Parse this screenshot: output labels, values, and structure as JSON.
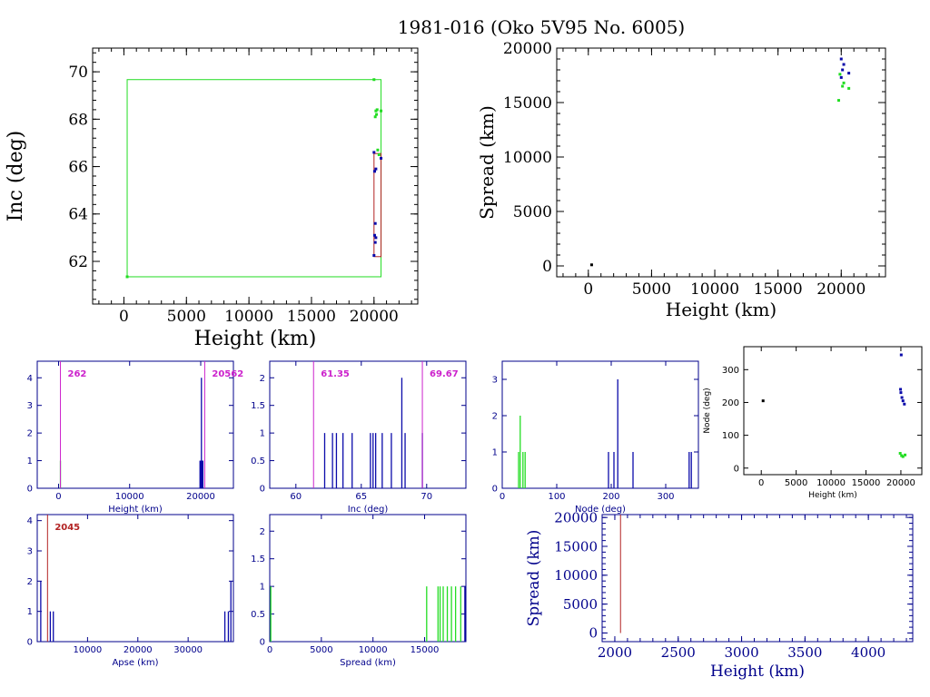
{
  "title": "1981-016 (Oko 5V95 No. 6005)",
  "colors": {
    "green": "#22dd22",
    "blue": "#0a0aaa",
    "navy": "#000080",
    "red": "#b22222",
    "magenta": "#cc22cc",
    "black": "#000000"
  },
  "chart_data": [
    {
      "id": "inc_height",
      "type": "scatter",
      "xlabel": "Height (km)",
      "ylabel": "Inc (deg)",
      "xlim": [
        -2500,
        23500
      ],
      "ylim": [
        60.2,
        71
      ],
      "xticks": [
        0,
        5000,
        10000,
        15000,
        20000
      ],
      "yticks": [
        62,
        64,
        66,
        68,
        70
      ],
      "boxes": [
        {
          "color": "green",
          "x": [
            262,
            20562
          ],
          "y": [
            61.35,
            69.67
          ]
        },
        {
          "color": "red",
          "x": [
            20000,
            20562
          ],
          "y": [
            62.2,
            66.55
          ]
        }
      ],
      "series": [
        {
          "color": "green",
          "points": [
            [
              262,
              61.35
            ],
            [
              20000,
              69.67
            ],
            [
              20150,
              68.35
            ],
            [
              20250,
              68.4
            ],
            [
              20100,
              68.1
            ],
            [
              20200,
              68.2
            ],
            [
              20562,
              68.35
            ],
            [
              20300,
              66.7
            ],
            [
              20400,
              66.5
            ]
          ]
        },
        {
          "color": "blue",
          "points": [
            [
              20050,
              65.8
            ],
            [
              20150,
              65.9
            ],
            [
              20000,
              66.6
            ],
            [
              20100,
              63.6
            ],
            [
              20050,
              63.1
            ],
            [
              20150,
              63.0
            ],
            [
              20100,
              62.8
            ],
            [
              20562,
              66.35
            ],
            [
              20000,
              62.25
            ]
          ]
        }
      ]
    },
    {
      "id": "spread_height",
      "type": "scatter",
      "xlabel": "Height (km)",
      "ylabel": "Spread (km)",
      "xlim": [
        -2500,
        23500
      ],
      "ylim": [
        -1000,
        20000
      ],
      "xticks": [
        0,
        5000,
        10000,
        15000,
        20000
      ],
      "yticks": [
        0,
        5000,
        10000,
        15000,
        20000
      ],
      "series": [
        {
          "color": "black",
          "points": [
            [
              262,
              100
            ]
          ]
        },
        {
          "color": "green",
          "points": [
            [
              19800,
              15200
            ],
            [
              20100,
              16500
            ],
            [
              20200,
              16800
            ],
            [
              20600,
              16300
            ],
            [
              19900,
              17600
            ]
          ]
        },
        {
          "color": "blue",
          "points": [
            [
              20000,
              19000
            ],
            [
              20100,
              18000
            ],
            [
              20000,
              17300
            ],
            [
              20600,
              17700
            ],
            [
              20200,
              18500
            ]
          ]
        }
      ]
    },
    {
      "id": "hist_height",
      "type": "bar",
      "xlabel": "Height (km)",
      "ylim": [
        0,
        4.6
      ],
      "xlim": [
        -3000,
        24600
      ],
      "xticks": [
        0,
        10000,
        20000
      ],
      "yticks": [
        0,
        1,
        2,
        3,
        4
      ],
      "markers": [
        {
          "x": 262,
          "label": "262",
          "color": "magenta"
        },
        {
          "x": 20562,
          "label": "20562",
          "color": "magenta"
        }
      ],
      "bars": [
        {
          "color": "green",
          "x": 262,
          "h": 1
        },
        {
          "color": "blue",
          "x": 19900,
          "h": 1
        },
        {
          "color": "blue",
          "x": 20000,
          "h": 1
        },
        {
          "color": "blue",
          "x": 20100,
          "h": 4
        },
        {
          "color": "blue",
          "x": 20200,
          "h": 1
        },
        {
          "color": "blue",
          "x": 20300,
          "h": 1
        }
      ]
    },
    {
      "id": "hist_inc",
      "type": "bar",
      "xlabel": "Inc (deg)",
      "ylim": [
        0,
        2.3
      ],
      "xlim": [
        58,
        73
      ],
      "xticks": [
        60,
        65,
        70
      ],
      "yticks": [
        0,
        0.5,
        1,
        1.5,
        2
      ],
      "markers": [
        {
          "x": 61.35,
          "label": "61.35",
          "color": "magenta"
        },
        {
          "x": 69.67,
          "label": "69.67",
          "color": "magenta"
        }
      ],
      "bars": [
        {
          "color": "blue",
          "x": 62.2,
          "h": 1
        },
        {
          "color": "blue",
          "x": 62.8,
          "h": 1
        },
        {
          "color": "blue",
          "x": 63.1,
          "h": 1
        },
        {
          "color": "blue",
          "x": 63.6,
          "h": 1
        },
        {
          "color": "blue",
          "x": 64.3,
          "h": 1
        },
        {
          "color": "blue",
          "x": 65.7,
          "h": 1
        },
        {
          "color": "blue",
          "x": 65.9,
          "h": 1
        },
        {
          "color": "blue",
          "x": 66.1,
          "h": 1
        },
        {
          "color": "blue",
          "x": 66.6,
          "h": 1
        },
        {
          "color": "blue",
          "x": 67.3,
          "h": 1
        },
        {
          "color": "blue",
          "x": 68.1,
          "h": 2
        },
        {
          "color": "blue",
          "x": 68.35,
          "h": 1
        },
        {
          "color": "blue",
          "x": 69.67,
          "h": 1
        }
      ]
    },
    {
      "id": "hist_node",
      "type": "bar",
      "xlabel": "Node (deg)",
      "ylim": [
        0,
        3.5
      ],
      "xlim": [
        0,
        360
      ],
      "xticks": [
        0,
        100,
        200,
        300
      ],
      "yticks": [
        0,
        1,
        2,
        3
      ],
      "bars": [
        {
          "color": "green",
          "x": 30,
          "h": 1
        },
        {
          "color": "green",
          "x": 33,
          "h": 2
        },
        {
          "color": "green",
          "x": 38,
          "h": 1
        },
        {
          "color": "green",
          "x": 42,
          "h": 1
        },
        {
          "color": "blue",
          "x": 195,
          "h": 1
        },
        {
          "color": "blue",
          "x": 205,
          "h": 1
        },
        {
          "color": "blue",
          "x": 212,
          "h": 3
        },
        {
          "color": "blue",
          "x": 240,
          "h": 1
        },
        {
          "color": "blue",
          "x": 343,
          "h": 1
        },
        {
          "color": "blue",
          "x": 347,
          "h": 1
        }
      ]
    },
    {
      "id": "node_height",
      "type": "scatter",
      "xlabel": "Height (km)",
      "ylabel": "Node (deg)",
      "xlim": [
        -2500,
        23000
      ],
      "ylim": [
        -20,
        370
      ],
      "xticks": [
        0,
        5000,
        10000,
        15000,
        20000
      ],
      "yticks": [
        0,
        100,
        200,
        300
      ],
      "series": [
        {
          "color": "black",
          "points": [
            [
              262,
              205
            ]
          ]
        },
        {
          "color": "blue",
          "points": [
            [
              20050,
              345
            ],
            [
              19950,
              240
            ],
            [
              20000,
              230
            ],
            [
              20150,
              215
            ],
            [
              20300,
              205
            ],
            [
              20500,
              195
            ]
          ]
        },
        {
          "color": "green",
          "points": [
            [
              19900,
              45
            ],
            [
              20100,
              38
            ],
            [
              20300,
              35
            ],
            [
              20600,
              40
            ]
          ]
        }
      ]
    },
    {
      "id": "hist_apse",
      "type": "bar",
      "xlabel": "Apse (km)",
      "ylim": [
        0,
        4.2
      ],
      "xlim": [
        0,
        39000
      ],
      "xticks": [
        10000,
        20000,
        30000
      ],
      "yticks": [
        0,
        1,
        2,
        3,
        4
      ],
      "markers": [
        {
          "x": 2045,
          "label": "2045",
          "color": "red"
        }
      ],
      "bars": [
        {
          "color": "blue",
          "x": 700,
          "h": 2
        },
        {
          "color": "blue",
          "x": 2600,
          "h": 1
        },
        {
          "color": "blue",
          "x": 3200,
          "h": 1
        },
        {
          "color": "blue",
          "x": 37300,
          "h": 1
        },
        {
          "color": "blue",
          "x": 38000,
          "h": 1
        },
        {
          "color": "blue",
          "x": 38500,
          "h": 2
        }
      ]
    },
    {
      "id": "hist_spread",
      "type": "bar",
      "xlabel": "Spread (km)",
      "ylim": [
        0,
        2.3
      ],
      "xlim": [
        0,
        19000
      ],
      "xticks": [
        0,
        5000,
        10000,
        15000
      ],
      "yticks": [
        0,
        0.5,
        1,
        1.5,
        2
      ],
      "bars": [
        {
          "color": "green",
          "x": 100,
          "h": 1
        },
        {
          "color": "green",
          "x": 15200,
          "h": 1
        },
        {
          "color": "green",
          "x": 16300,
          "h": 1
        },
        {
          "color": "green",
          "x": 16500,
          "h": 1
        },
        {
          "color": "green",
          "x": 16800,
          "h": 1
        },
        {
          "color": "green",
          "x": 17200,
          "h": 1
        },
        {
          "color": "green",
          "x": 17600,
          "h": 1
        },
        {
          "color": "green",
          "x": 18000,
          "h": 1
        },
        {
          "color": "green",
          "x": 18500,
          "h": 1
        },
        {
          "color": "blue",
          "x": 18900,
          "h": 1
        }
      ]
    },
    {
      "id": "spread_height_zoom",
      "type": "line",
      "xlabel": "Height (km)",
      "ylabel": "Spread (km)",
      "xlim": [
        1900,
        4350
      ],
      "ylim": [
        -1500,
        20500
      ],
      "xticks": [
        2000,
        2500,
        3000,
        3500,
        4000
      ],
      "yticks": [
        0,
        5000,
        10000,
        15000,
        20000
      ],
      "verticals": [
        {
          "x": 2045,
          "color": "red"
        }
      ]
    }
  ]
}
